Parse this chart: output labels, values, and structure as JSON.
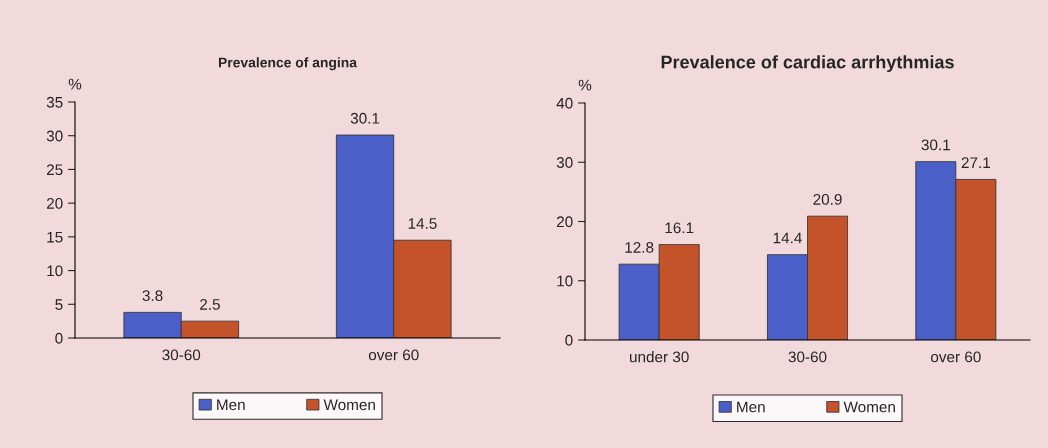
{
  "chart_data": [
    {
      "type": "bar",
      "title": "Prevalence of angina",
      "ylabel": "%",
      "categories": [
        "30-60",
        "over 60"
      ],
      "series": [
        {
          "name": "Men",
          "color": "#4a5fc8",
          "values": [
            3.8,
            30.1
          ]
        },
        {
          "name": "Women",
          "color": "#c4532a",
          "values": [
            2.5,
            14.5
          ]
        }
      ],
      "ylim": [
        0,
        35
      ],
      "yticks": [
        0,
        5,
        10,
        15,
        20,
        25,
        30,
        35
      ],
      "data_labels": true,
      "legend": "bottom",
      "grid": false
    },
    {
      "type": "bar",
      "title": "Prevalence of cardiac arrhythmias",
      "ylabel": "%",
      "categories": [
        "under 30",
        "30-60",
        "over 60"
      ],
      "series": [
        {
          "name": "Men",
          "color": "#4a5fc8",
          "values": [
            12.8,
            14.4,
            30.1
          ]
        },
        {
          "name": "Women",
          "color": "#c4532a",
          "values": [
            16.1,
            20.9,
            27.1
          ]
        }
      ],
      "ylim": [
        0,
        40
      ],
      "yticks": [
        0,
        10,
        20,
        30,
        40
      ],
      "data_labels": true,
      "legend": "bottom",
      "grid": false
    }
  ]
}
